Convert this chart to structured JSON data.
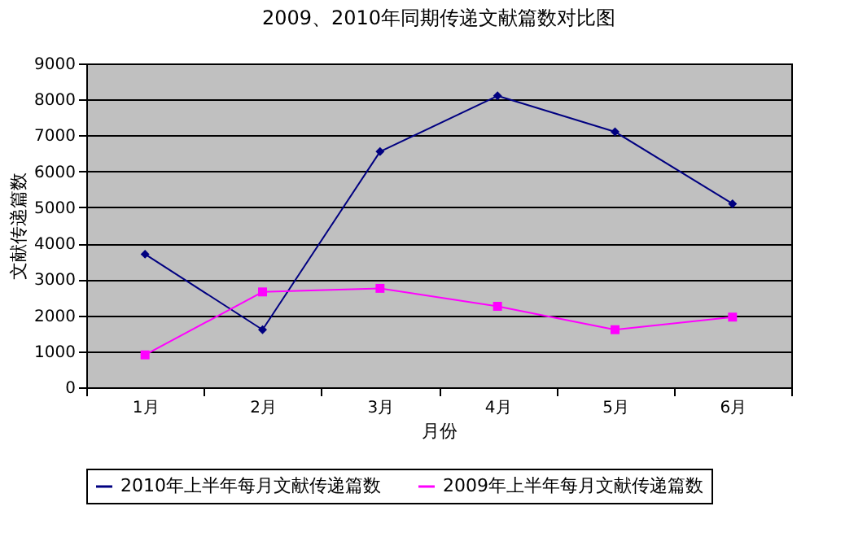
{
  "chart_data": {
    "type": "line",
    "title": "2009、2010年同期传递文献篇数对比图",
    "xlabel": "月份",
    "ylabel": "文献传递篇数",
    "categories": [
      "1月",
      "2月",
      "3月",
      "4月",
      "5月",
      "6月"
    ],
    "series": [
      {
        "name": "2010年上半年每月文献传递篇数",
        "color": "#000080",
        "marker": "diamond",
        "values": [
          3700,
          1600,
          6550,
          8100,
          7100,
          5100
        ]
      },
      {
        "name": "2009年上半年每月文献传递篇数",
        "color": "#ff00ff",
        "marker": "square",
        "values": [
          900,
          2650,
          2750,
          2250,
          1600,
          1950
        ]
      }
    ],
    "ylim": [
      0,
      9000
    ],
    "yticks": [
      0,
      1000,
      2000,
      3000,
      4000,
      5000,
      6000,
      7000,
      8000,
      9000
    ],
    "grid": "y",
    "legend": "bottom"
  }
}
